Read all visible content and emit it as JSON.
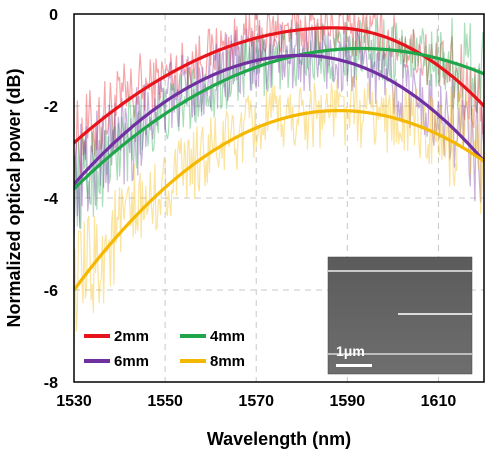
{
  "chart_data": {
    "type": "line",
    "xlabel": "Wavelength (nm)",
    "ylabel": "Normalized optical power (dB)",
    "xlim": [
      1530,
      1620
    ],
    "ylim": [
      -8,
      0
    ],
    "x_ticks": [
      1530,
      1550,
      1570,
      1590,
      1610
    ],
    "y_ticks": [
      0,
      -2,
      -4,
      -6,
      -8
    ],
    "grid": "dashed",
    "legend_position": "bottom-left",
    "series": [
      {
        "name": "2mm",
        "color": "#e8141c",
        "fit_peak_x": 1587,
        "fit_peak_y": -0.3,
        "fit_x": [
          1530,
          1550,
          1570,
          1587,
          1600,
          1620
        ],
        "fit_y": [
          -2.8,
          -1.3,
          -0.5,
          -0.3,
          -0.6,
          -2.0
        ],
        "noise_amplitude": 0.6
      },
      {
        "name": "4mm",
        "color": "#1fa64a",
        "fit_peak_x": 1593,
        "fit_peak_y": -0.75,
        "fit_x": [
          1530,
          1550,
          1570,
          1593,
          1610,
          1620
        ],
        "fit_y": [
          -3.8,
          -2.0,
          -1.1,
          -0.75,
          -1.0,
          -1.3
        ],
        "noise_amplitude": 0.7
      },
      {
        "name": "6mm",
        "color": "#7030a0",
        "fit_peak_x": 1580,
        "fit_peak_y": -0.9,
        "fit_x": [
          1530,
          1550,
          1570,
          1580,
          1600,
          1620
        ],
        "fit_y": [
          -3.7,
          -1.9,
          -1.05,
          -0.9,
          -1.4,
          -3.2
        ],
        "noise_amplitude": 0.8
      },
      {
        "name": "8mm",
        "color": "#f5b800",
        "fit_peak_x": 1588,
        "fit_peak_y": -2.1,
        "fit_x": [
          1530,
          1550,
          1570,
          1588,
          1605,
          1620
        ],
        "fit_y": [
          -6.0,
          -3.8,
          -2.6,
          -2.1,
          -2.4,
          -3.2
        ],
        "noise_amplitude": 0.8
      }
    ],
    "inset": {
      "type": "microscope-image",
      "scale_bar_label": "1μm"
    }
  }
}
